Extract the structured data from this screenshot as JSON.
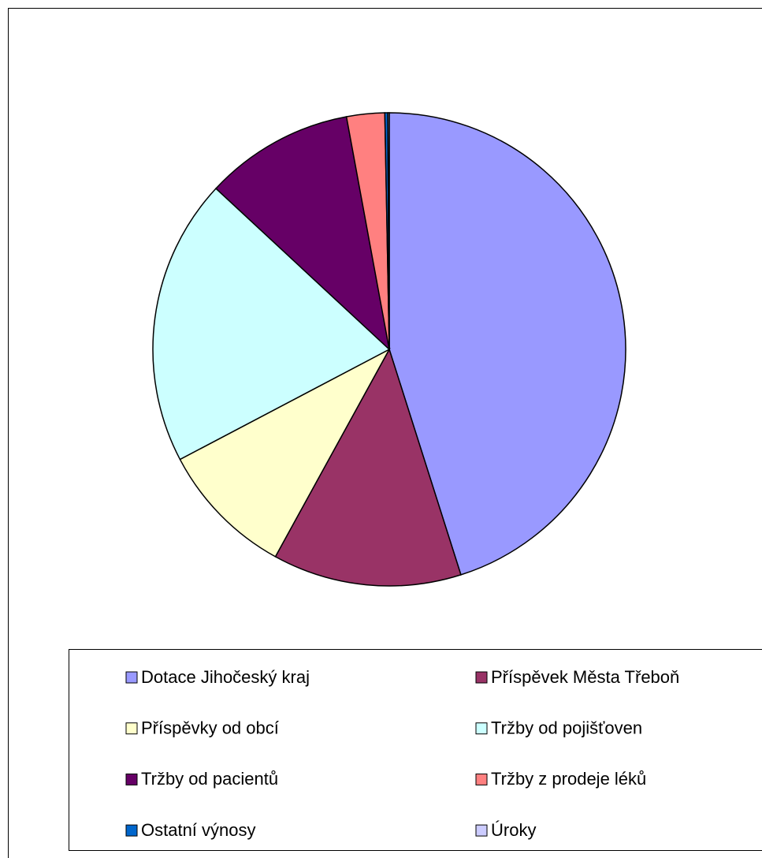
{
  "chart_data": {
    "type": "pie",
    "categories": [
      "Dotace Jihočeský kraj",
      "Příspěvek Města Třeboň",
      "Příspěvky od obcí",
      "Tržby od pojišťoven",
      "Tržby od pacientů",
      "Tržby z prodeje léků",
      "Ostatní výnosy",
      "Úroky"
    ],
    "values": [
      45.1,
      12.9,
      9.3,
      19.6,
      10.2,
      2.6,
      0.2,
      0.1
    ],
    "colors": [
      "#9999FF",
      "#993366",
      "#FFFFCC",
      "#CCFFFF",
      "#660066",
      "#FF8080",
      "#0066CC",
      "#CCCCFF"
    ],
    "legend": "bottom"
  }
}
